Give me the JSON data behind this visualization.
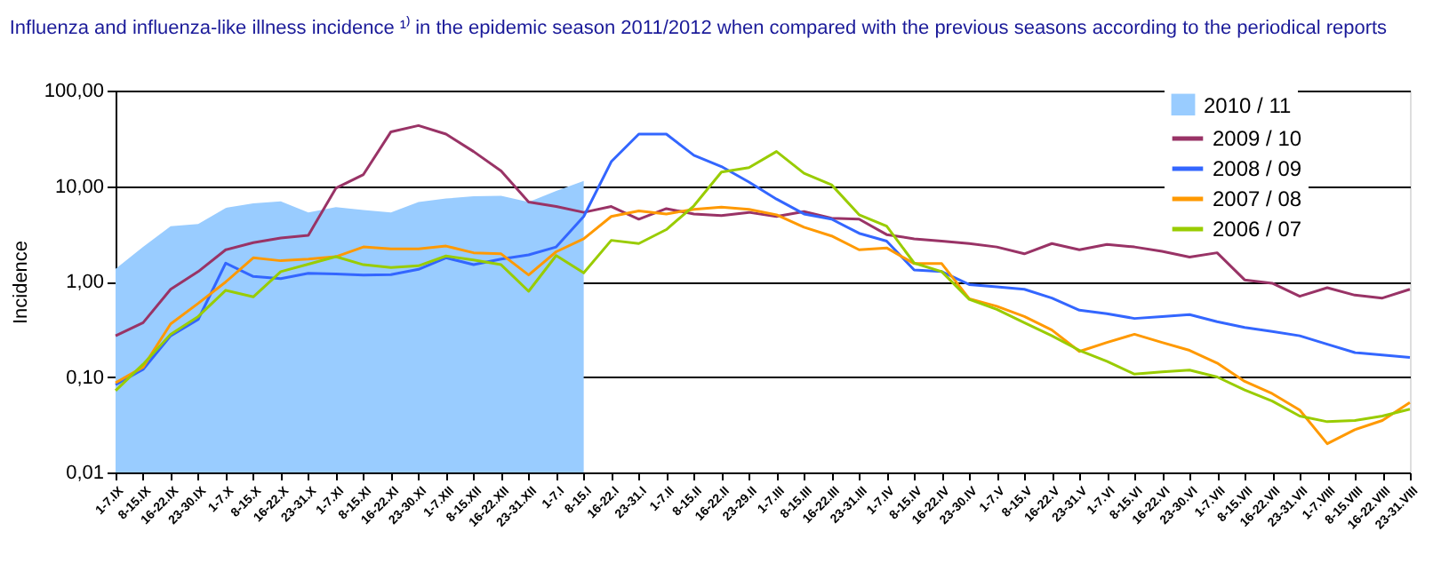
{
  "chart_data": {
    "type": "line",
    "title": "Influenza and influenza-like illness incidence ¹⁾ in the epidemic season 2011/2012 when compared with the previous seasons according to the periodical reports",
    "ylabel": "Incidence",
    "categories": [
      "1-7.IX",
      "8-15.IX",
      "16-22.IX",
      "23-30.IX",
      "1-7.X",
      "8-15.X",
      "16-22.X",
      "23-31.X",
      "1-7.XI",
      "8-15.XI",
      "16-22.XI",
      "23-30.XI",
      "1-7.XII",
      "8-15.XII",
      "16-22.XII",
      "23-31.XII",
      "1-7.I",
      "8-15.I",
      "16-22.I",
      "23-31.I",
      "1-7.II",
      "8-15.II",
      "16-22.II",
      "23-29.II",
      "1-7.III",
      "8-15.III",
      "16-22.III",
      "23-31.III",
      "1-7.IV",
      "8-15.IV",
      "16-22.IV",
      "23-30.IV",
      "1-7.V",
      "8-15.V",
      "16-22.V",
      "23-31.V",
      "1-7.VI",
      "8-15.VI",
      "16-22.VI",
      "23-30.VI",
      "1-7.VII",
      "8-15.VII",
      "16-22.VII",
      "23-31.VII",
      "1-7.VIII",
      "8-15.VIII",
      "16-22.VIII",
      "23-31.VIII"
    ],
    "series": [
      {
        "name": "2010 / 11",
        "type": "area",
        "color": "#99ccff",
        "values": [
          1.36,
          2.3,
          3.8,
          4.0,
          5.9,
          6.6,
          6.9,
          5.3,
          6.0,
          5.6,
          5.3,
          6.8,
          7.4,
          7.8,
          7.9,
          6.8,
          8.9,
          11.3,
          null,
          null,
          null,
          null,
          null,
          null,
          null,
          null,
          null,
          null,
          null,
          null,
          null,
          null,
          null,
          null,
          null,
          null,
          null,
          null,
          null,
          null,
          null,
          null,
          null,
          null,
          null,
          null,
          null,
          null
        ]
      },
      {
        "name": "2009 / 10",
        "color": "#993366",
        "values": [
          0.27,
          0.37,
          0.83,
          1.27,
          2.15,
          2.55,
          2.85,
          3.05,
          9.5,
          13.2,
          37,
          43,
          35,
          23,
          14.4,
          6.8,
          6.1,
          5.3,
          6.1,
          4.5,
          5.8,
          5.1,
          4.9,
          5.3,
          4.8,
          5.4,
          4.6,
          4.5,
          3.1,
          2.8,
          2.65,
          2.5,
          2.3,
          1.95,
          2.5,
          2.15,
          2.45,
          2.3,
          2.07,
          1.8,
          2.0,
          1.04,
          0.96,
          0.7,
          0.86,
          0.72,
          0.67,
          0.83
        ]
      },
      {
        "name": "2008 / 09",
        "color": "#3366ff",
        "values": [
          0.083,
          0.12,
          0.27,
          0.4,
          1.56,
          1.13,
          1.07,
          1.22,
          1.2,
          1.17,
          1.18,
          1.34,
          1.77,
          1.5,
          1.72,
          1.9,
          2.3,
          4.8,
          18,
          35,
          35,
          21,
          16,
          11,
          7.3,
          5.1,
          4.5,
          3.2,
          2.65,
          1.32,
          1.27,
          0.93,
          0.88,
          0.83,
          0.67,
          0.5,
          0.46,
          0.41,
          0.43,
          0.45,
          0.38,
          0.33,
          0.3,
          0.27,
          0.22,
          0.18,
          0.17,
          0.16
        ]
      },
      {
        "name": "2007 / 08",
        "color": "#ff9900",
        "values": [
          0.087,
          0.127,
          0.36,
          0.59,
          0.99,
          1.77,
          1.65,
          1.72,
          1.82,
          2.3,
          2.2,
          2.2,
          2.35,
          2.0,
          1.95,
          1.17,
          2.05,
          2.8,
          4.8,
          5.5,
          5.1,
          5.7,
          6.0,
          5.7,
          5.0,
          3.7,
          3.0,
          2.15,
          2.25,
          1.54,
          1.54,
          0.66,
          0.55,
          0.43,
          0.31,
          0.185,
          0.23,
          0.28,
          0.23,
          0.19,
          0.14,
          0.09,
          0.067,
          0.045,
          0.02,
          0.028,
          0.035,
          0.054
        ]
      },
      {
        "name": "2006 / 07",
        "color": "#99cc00",
        "values": [
          0.072,
          0.136,
          0.28,
          0.43,
          0.81,
          0.69,
          1.27,
          1.52,
          1.82,
          1.5,
          1.4,
          1.46,
          1.85,
          1.68,
          1.5,
          0.79,
          1.87,
          1.23,
          2.7,
          2.5,
          3.5,
          6.2,
          14,
          15.6,
          23,
          13.6,
          10.3,
          5.0,
          3.8,
          1.56,
          1.27,
          0.65,
          0.51,
          0.37,
          0.27,
          0.19,
          0.146,
          0.107,
          0.113,
          0.118,
          0.1,
          0.073,
          0.056,
          0.039,
          0.034,
          0.035,
          0.039,
          0.046
        ]
      }
    ],
    "ylim": [
      0.01,
      100
    ],
    "yticks": [
      {
        "value": 0.01,
        "label": "0,01"
      },
      {
        "value": 0.1,
        "label": "0,10"
      },
      {
        "value": 1,
        "label": "1,00"
      },
      {
        "value": 10,
        "label": "10,00"
      },
      {
        "value": 100,
        "label": "100,00"
      }
    ],
    "log": "y",
    "grid": "y",
    "legend": "top right",
    "marker": "none",
    "line_style": "solid"
  }
}
